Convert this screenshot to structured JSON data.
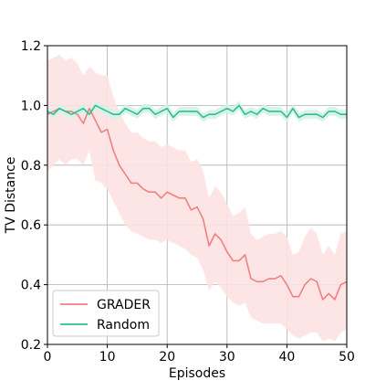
{
  "chart_data": {
    "type": "line",
    "title": "",
    "xlabel": "Episodes",
    "ylabel": "TV Distance",
    "xlim": [
      0,
      50
    ],
    "ylim": [
      0.2,
      1.2
    ],
    "xticks": [
      0,
      10,
      20,
      30,
      40,
      50
    ],
    "yticks": [
      0.2,
      0.4,
      0.6,
      0.8,
      1.0,
      1.2
    ],
    "xtick_labels": [
      "0",
      "10",
      "20",
      "30",
      "40",
      "50"
    ],
    "ytick_labels": [
      "0.2",
      "0.4",
      "0.6",
      "0.8",
      "1.0",
      "1.2"
    ],
    "grid": true,
    "legend_position": "lower-left",
    "x": [
      0,
      1,
      2,
      3,
      4,
      5,
      6,
      7,
      8,
      9,
      10,
      11,
      12,
      13,
      14,
      15,
      16,
      17,
      18,
      19,
      20,
      21,
      22,
      23,
      24,
      25,
      26,
      27,
      28,
      29,
      30,
      31,
      32,
      33,
      34,
      35,
      36,
      37,
      38,
      39,
      40,
      41,
      42,
      43,
      44,
      45,
      46,
      47,
      48,
      49,
      50
    ],
    "series": [
      {
        "name": "GRADER",
        "color": "#f08080",
        "band_color": "#fde2e2",
        "values": [
          0.97,
          0.98,
          0.99,
          0.98,
          0.98,
          0.97,
          0.94,
          0.99,
          0.95,
          0.91,
          0.92,
          0.85,
          0.8,
          0.77,
          0.74,
          0.74,
          0.72,
          0.71,
          0.71,
          0.69,
          0.71,
          0.7,
          0.69,
          0.69,
          0.65,
          0.66,
          0.62,
          0.53,
          0.57,
          0.55,
          0.51,
          0.48,
          0.48,
          0.5,
          0.42,
          0.41,
          0.41,
          0.42,
          0.42,
          0.43,
          0.4,
          0.36,
          0.36,
          0.4,
          0.42,
          0.41,
          0.35,
          0.37,
          0.35,
          0.4,
          0.41
        ],
        "lower": [
          0.78,
          0.8,
          0.82,
          0.8,
          0.82,
          0.82,
          0.8,
          0.85,
          0.75,
          0.74,
          0.72,
          0.68,
          0.64,
          0.6,
          0.58,
          0.57,
          0.56,
          0.55,
          0.55,
          0.54,
          0.55,
          0.54,
          0.53,
          0.52,
          0.5,
          0.49,
          0.45,
          0.38,
          0.41,
          0.39,
          0.36,
          0.34,
          0.33,
          0.34,
          0.29,
          0.28,
          0.27,
          0.27,
          0.27,
          0.27,
          0.25,
          0.23,
          0.22,
          0.23,
          0.24,
          0.24,
          0.21,
          0.22,
          0.21,
          0.24,
          0.25
        ],
        "upper": [
          1.15,
          1.16,
          1.17,
          1.15,
          1.16,
          1.14,
          1.1,
          1.13,
          1.11,
          1.1,
          1.1,
          1.03,
          0.98,
          0.94,
          0.91,
          0.91,
          0.89,
          0.88,
          0.88,
          0.86,
          0.87,
          0.86,
          0.85,
          0.85,
          0.81,
          0.82,
          0.78,
          0.69,
          0.73,
          0.71,
          0.67,
          0.63,
          0.64,
          0.66,
          0.57,
          0.55,
          0.56,
          0.57,
          0.57,
          0.58,
          0.56,
          0.5,
          0.51,
          0.56,
          0.59,
          0.57,
          0.5,
          0.53,
          0.5,
          0.57,
          0.58
        ]
      },
      {
        "name": "Random",
        "color": "#2cbf8f",
        "band_color": "#d6f2e8",
        "values": [
          0.98,
          0.97,
          0.99,
          0.98,
          0.97,
          0.98,
          0.99,
          0.97,
          1.0,
          0.99,
          0.98,
          0.97,
          0.97,
          0.99,
          0.98,
          0.97,
          0.99,
          0.99,
          0.97,
          0.98,
          0.99,
          0.96,
          0.98,
          0.98,
          0.98,
          0.98,
          0.96,
          0.97,
          0.97,
          0.98,
          0.99,
          0.98,
          1.0,
          0.97,
          0.98,
          0.97,
          0.99,
          0.98,
          0.98,
          0.98,
          0.96,
          0.99,
          0.96,
          0.97,
          0.97,
          0.97,
          0.96,
          0.98,
          0.98,
          0.97,
          0.97
        ],
        "lower": [
          0.965,
          0.955,
          0.975,
          0.965,
          0.955,
          0.965,
          0.975,
          0.955,
          0.985,
          0.975,
          0.965,
          0.955,
          0.955,
          0.975,
          0.965,
          0.955,
          0.975,
          0.975,
          0.955,
          0.965,
          0.975,
          0.945,
          0.965,
          0.965,
          0.965,
          0.965,
          0.945,
          0.955,
          0.955,
          0.965,
          0.975,
          0.965,
          0.985,
          0.955,
          0.965,
          0.955,
          0.975,
          0.965,
          0.965,
          0.965,
          0.945,
          0.975,
          0.945,
          0.955,
          0.955,
          0.955,
          0.945,
          0.965,
          0.965,
          0.955,
          0.955
        ],
        "upper": [
          0.995,
          0.985,
          1.005,
          0.995,
          0.985,
          0.995,
          1.005,
          0.985,
          1.015,
          1.005,
          0.995,
          0.985,
          0.985,
          1.005,
          0.995,
          0.985,
          1.005,
          1.005,
          0.985,
          0.995,
          1.005,
          0.975,
          0.995,
          0.995,
          0.995,
          0.995,
          0.975,
          0.985,
          0.985,
          0.995,
          1.005,
          0.995,
          1.015,
          0.985,
          0.995,
          0.985,
          1.005,
          0.995,
          0.995,
          0.995,
          0.975,
          1.005,
          0.975,
          0.985,
          0.985,
          0.985,
          0.975,
          0.995,
          0.995,
          0.985,
          0.985
        ]
      }
    ]
  }
}
